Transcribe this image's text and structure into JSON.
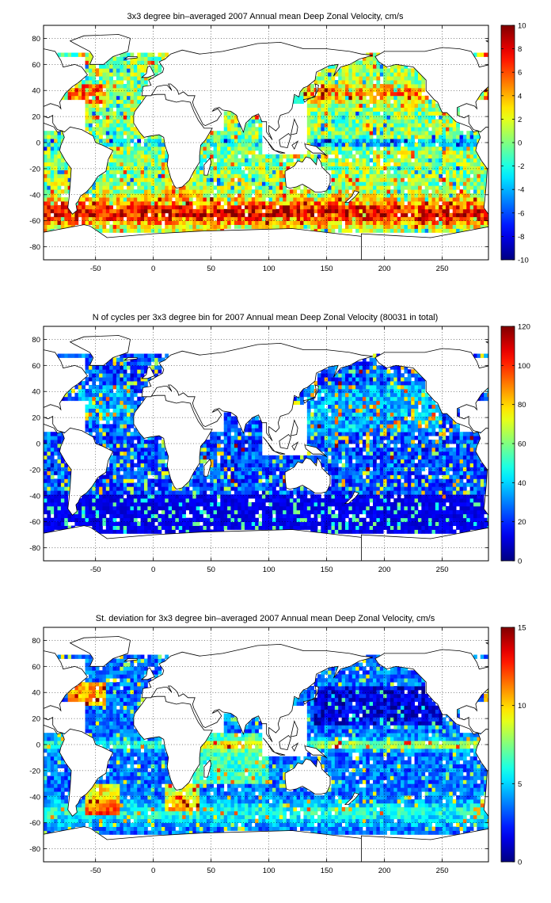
{
  "colors": {
    "colormap": "jet",
    "land": "#ffffff",
    "coast": "#000000",
    "missing": "#ffffff"
  },
  "panels": [
    {
      "title": "3x3 degree bin–averaged 2007 Annual mean Deep Zonal Velocity, cm/s",
      "colorbar": {
        "min": -10,
        "max": 10,
        "ticks": [
          "10",
          "8",
          "6",
          "4",
          "2",
          "0",
          "-2",
          "-4",
          "-6",
          "-8",
          "-10"
        ]
      },
      "field": "mean_velocity"
    },
    {
      "title": "N of cycles per 3x3 degree bin for 2007 Annual mean Deep Zonal Velocity (80031 in total)",
      "colorbar": {
        "min": 0,
        "max": 120,
        "ticks": [
          "120",
          "100",
          "80",
          "60",
          "40",
          "20",
          "0"
        ]
      },
      "field": "cycle_count"
    },
    {
      "title": "St. deviation for 3x3 degree bin–averaged 2007 Annual mean Deep Zonal Velocity, cm/s",
      "colorbar": {
        "min": 0,
        "max": 15,
        "ticks": [
          "15",
          "10",
          "5",
          "0"
        ]
      },
      "field": "std_deviation"
    }
  ],
  "axes": {
    "x_ticks": [
      "-50",
      "0",
      "50",
      "100",
      "150",
      "200",
      "250"
    ],
    "y_ticks": [
      "80",
      "60",
      "40",
      "20",
      "0",
      "-20",
      "-40",
      "-60",
      "-80"
    ],
    "xlim": [
      -95,
      290
    ],
    "ylim": [
      -90,
      90
    ],
    "grid": "dotted"
  },
  "chart_data": [
    {
      "type": "heatmap",
      "title": "3x3 degree bin–averaged 2007 Annual mean Deep Zonal Velocity, cm/s",
      "bin_size_deg": 3,
      "xlim": [
        -95,
        290
      ],
      "ylim": [
        -90,
        90
      ],
      "clim": [
        -10,
        10
      ],
      "units": "cm/s",
      "grid": true,
      "x": [
        -50,
        0,
        50,
        100,
        150,
        200,
        250
      ],
      "y": [
        40,
        20,
        0,
        -20,
        -40,
        -50,
        -60
      ],
      "values": [
        [
          6,
          1,
          0,
          0,
          4,
          3,
          2
        ],
        [
          1,
          0,
          0,
          0,
          1,
          0,
          3
        ],
        [
          -2,
          -1,
          -2,
          -1,
          -3,
          -5,
          -4
        ],
        [
          0,
          0,
          1,
          0,
          0,
          -1,
          0
        ],
        [
          2,
          3,
          5,
          2,
          1,
          1,
          1
        ],
        [
          4,
          7,
          8,
          5,
          6,
          4,
          5
        ],
        [
          7,
          8,
          6,
          6,
          7,
          9,
          8
        ]
      ]
    },
    {
      "type": "heatmap",
      "title": "N of cycles per 3x3 degree bin for 2007 Annual mean Deep Zonal Velocity (80031 in total)",
      "total_cycles": 80031,
      "bin_size_deg": 3,
      "xlim": [
        -95,
        290
      ],
      "ylim": [
        -90,
        90
      ],
      "clim": [
        0,
        120
      ],
      "grid": true,
      "x": [
        -50,
        0,
        50,
        100,
        150,
        200,
        250
      ],
      "y": [
        40,
        20,
        0,
        -20,
        -40,
        -50,
        -60
      ],
      "values": [
        [
          20,
          15,
          0,
          0,
          35,
          30,
          25
        ],
        [
          40,
          25,
          0,
          0,
          35,
          40,
          35
        ],
        [
          20,
          15,
          30,
          25,
          30,
          35,
          30
        ],
        [
          25,
          20,
          30,
          30,
          25,
          25,
          30
        ],
        [
          20,
          15,
          20,
          15,
          20,
          20,
          20
        ],
        [
          15,
          10,
          15,
          10,
          15,
          15,
          15
        ],
        [
          10,
          10,
          10,
          10,
          10,
          10,
          10
        ]
      ]
    },
    {
      "type": "heatmap",
      "title": "St. deviation for 3x3 degree bin–averaged 2007 Annual mean Deep Zonal Velocity, cm/s",
      "bin_size_deg": 3,
      "xlim": [
        -95,
        290
      ],
      "ylim": [
        -90,
        90
      ],
      "clim": [
        0,
        15
      ],
      "units": "cm/s",
      "grid": true,
      "x": [
        -50,
        0,
        50,
        100,
        150,
        200,
        250
      ],
      "y": [
        40,
        20,
        0,
        -20,
        -40,
        -50,
        -60
      ],
      "values": [
        [
          11,
          4,
          0,
          0,
          3,
          2,
          3
        ],
        [
          6,
          3,
          0,
          0,
          3,
          3,
          3
        ],
        [
          5,
          6,
          9,
          6,
          7,
          11,
          8
        ],
        [
          4,
          4,
          7,
          5,
          4,
          4,
          3
        ],
        [
          9,
          6,
          8,
          5,
          6,
          4,
          4
        ],
        [
          8,
          6,
          7,
          6,
          7,
          7,
          6
        ],
        [
          5,
          5,
          5,
          5,
          6,
          6,
          5
        ]
      ]
    }
  ]
}
